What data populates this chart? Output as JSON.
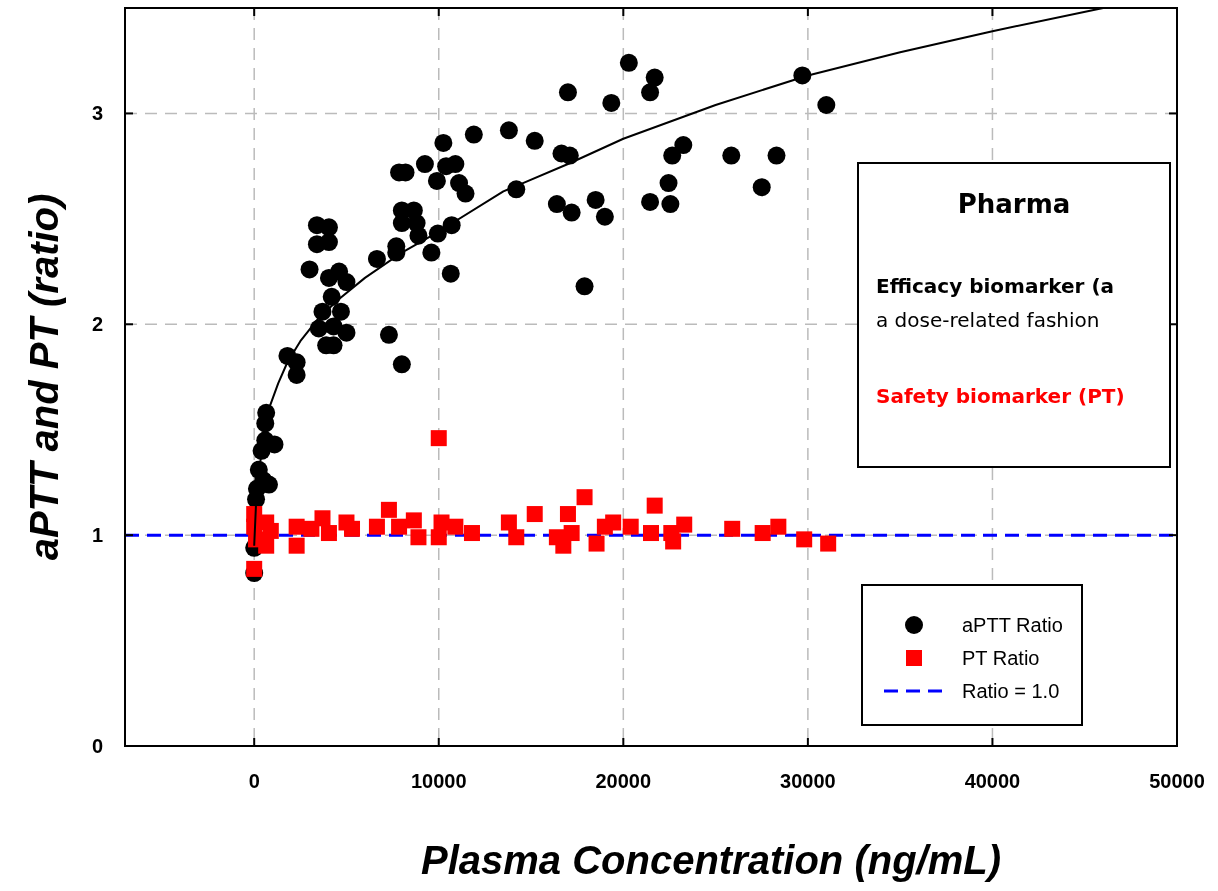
{
  "chart_data": {
    "type": "scatter",
    "xlabel": "Plasma Concentration (ng/mL)",
    "ylabel": "aPTT and PT (ratio)",
    "xlim": [
      -7000,
      50000
    ],
    "xticks": [
      0,
      10000,
      20000,
      30000,
      40000,
      50000
    ],
    "ylim": [
      0,
      3.5
    ],
    "yticks": [
      0,
      1,
      2,
      3
    ],
    "grid": true,
    "legend": "bottom right",
    "series": [
      {
        "name": "aPTT Ratio",
        "color": "#000000",
        "marker": "circle",
        "x": [
          0,
          0,
          100,
          150,
          250,
          500,
          400,
          600,
          600,
          650,
          800,
          1100,
          1800,
          2300,
          2300,
          3000,
          3400,
          4050,
          3400,
          4050,
          4050,
          4600,
          5000,
          4200,
          3700,
          4700,
          3500,
          4300,
          5000,
          3900,
          4300,
          7300,
          8000,
          6650,
          7700,
          7700,
          8000,
          8650,
          8000,
          8800,
          8900,
          9950,
          10700,
          9600,
          10650,
          7850,
          8200,
          9250,
          10250,
          10400,
          10900,
          9900,
          11100,
          11450,
          11900,
          13800,
          15200,
          14200,
          20300,
          21700,
          21450,
          19350,
          17000,
          16650,
          17100,
          16400,
          17200,
          18500,
          19000,
          17900,
          23250,
          22650,
          22450,
          21450,
          22550,
          25850,
          28300,
          27500,
          29700,
          31000
        ],
        "values": [
          0.82,
          0.94,
          1.17,
          1.22,
          1.31,
          1.26,
          1.4,
          1.45,
          1.53,
          1.58,
          1.24,
          1.43,
          1.85,
          1.82,
          1.76,
          2.26,
          2.47,
          2.46,
          2.38,
          2.39,
          2.22,
          2.25,
          2.2,
          2.13,
          2.06,
          2.06,
          1.98,
          1.99,
          1.96,
          1.9,
          1.9,
          1.95,
          1.81,
          2.31,
          2.37,
          2.34,
          2.54,
          2.54,
          2.48,
          2.48,
          2.42,
          2.43,
          2.47,
          2.34,
          2.24,
          2.72,
          2.72,
          2.76,
          2.86,
          2.75,
          2.76,
          2.68,
          2.67,
          2.62,
          2.9,
          2.92,
          2.87,
          2.64,
          3.24,
          3.17,
          3.1,
          3.05,
          3.1,
          2.81,
          2.8,
          2.57,
          2.53,
          2.59,
          2.51,
          2.18,
          2.85,
          2.8,
          2.67,
          2.58,
          2.57,
          2.8,
          2.8,
          2.65,
          3.18,
          3.04
        ]
      },
      {
        "name": "PT Ratio",
        "color": "#ff0000",
        "marker": "square",
        "x": [
          0,
          0,
          100,
          650,
          900,
          650,
          0,
          2300,
          2300,
          3100,
          3700,
          4050,
          5000,
          5300,
          6650,
          7300,
          7850,
          8650,
          8900,
          10000,
          10150,
          10000,
          10900,
          11800,
          13800,
          14200,
          15200,
          16400,
          16750,
          17200,
          17000,
          17900,
          18550,
          19000,
          19450,
          20400,
          21500,
          21700,
          22600,
          22700,
          23300,
          25900,
          27550,
          28400,
          29800,
          31100
        ],
        "values": [
          1.1,
          1.04,
          0.98,
          1.06,
          1.02,
          0.95,
          0.84,
          1.04,
          0.95,
          1.03,
          1.08,
          1.01,
          1.06,
          1.03,
          1.04,
          1.12,
          1.04,
          1.07,
          0.99,
          1.46,
          1.06,
          0.99,
          1.04,
          1.01,
          1.06,
          0.99,
          1.1,
          0.99,
          0.95,
          1.01,
          1.1,
          1.18,
          0.96,
          1.04,
          1.06,
          1.04,
          1.01,
          1.14,
          1.01,
          0.97,
          1.05,
          1.03,
          1.01,
          1.04,
          0.98,
          0.96
        ]
      },
      {
        "type": "line",
        "color": "#000000",
        "marker": "none",
        "x": [
          0,
          100,
          250,
          450,
          800,
          1300,
          1800,
          2500,
          3500,
          4600,
          6000,
          8000,
          10000,
          13500,
          17000,
          20000,
          25000,
          30000,
          35000,
          40000,
          46000
        ],
        "values": [
          0.95,
          1.15,
          1.3,
          1.42,
          1.6,
          1.72,
          1.82,
          1.92,
          2.03,
          2.12,
          2.22,
          2.34,
          2.44,
          2.63,
          2.76,
          2.88,
          3.04,
          3.18,
          3.29,
          3.39,
          3.5
        ]
      }
    ],
    "ref_lines": [
      {
        "axis": "y",
        "value": 1,
        "label": "Ratio = 1.0",
        "color": "#0000ff",
        "line_style": "dashed"
      }
    ],
    "annotations": [
      "Pharma",
      "Efficacy biomarker (a",
      "a dose-related fashion",
      "Safety biomarker (PT)"
    ]
  }
}
